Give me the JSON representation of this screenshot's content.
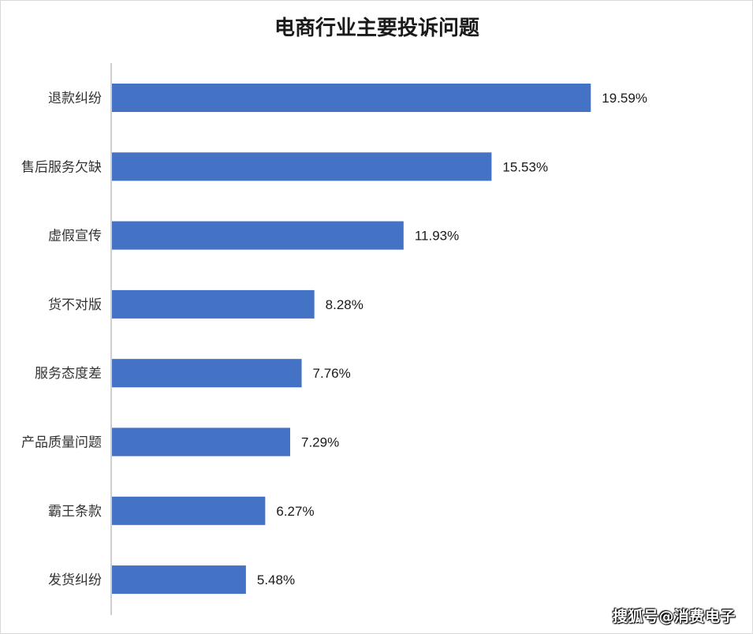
{
  "chart_data": {
    "type": "bar",
    "orientation": "horizontal",
    "title": "电商行业主要投诉问题",
    "categories": [
      "退款纠纷",
      "售后服务欠缺",
      "虚假宣传",
      "货不对版",
      "服务态度差",
      "产品质量问题",
      "霸王条款",
      "发货纠纷"
    ],
    "values": [
      19.59,
      15.53,
      11.93,
      8.28,
      7.76,
      7.29,
      6.27,
      5.48
    ],
    "value_labels": [
      "19.59%",
      "15.53%",
      "11.93%",
      "8.28%",
      "7.76%",
      "7.29%",
      "6.27%",
      "5.48%"
    ],
    "xlim": [
      0,
      20
    ],
    "grid": false,
    "bar_color": "#4472C4"
  },
  "watermark": "搜狐号@消费电子"
}
